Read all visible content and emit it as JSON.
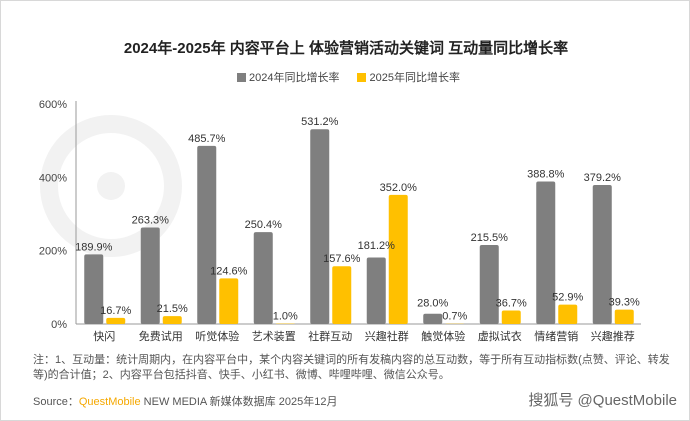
{
  "chart_data": {
    "type": "bar",
    "title": "2024年-2025年 内容平台上 体验营销活动关键词 互动量同比增长率",
    "categories": [
      "快闪",
      "免费试用",
      "听觉体验",
      "艺术装置",
      "社群互动",
      "兴趣社群",
      "触觉体验",
      "虚拟试衣",
      "情绪营销",
      "兴趣推荐"
    ],
    "series": [
      {
        "name": "2024年同比增长率",
        "color": "#7f7f7f",
        "values": [
          189.9,
          263.3,
          485.7,
          250.4,
          531.2,
          181.2,
          28.0,
          215.5,
          388.8,
          379.2
        ]
      },
      {
        "name": "2025年同比增长率",
        "color": "#ffc000",
        "values": [
          16.7,
          21.5,
          124.6,
          1.0,
          157.6,
          352.0,
          0.7,
          36.7,
          52.9,
          39.3
        ]
      }
    ],
    "yticks": [
      "0%",
      "200%",
      "400%",
      "600%"
    ],
    "ylim": [
      0,
      600
    ],
    "xlabel": "",
    "ylabel": "",
    "legend": "top-center",
    "grid": false
  },
  "note": "注：1、互动量：统计周期内，在内容平台中，某个内容关键词的所有发稿内容的总互动数，等于所有互动指标数(点赞、评论、转发等)的合计值；2、内容平台包括抖音、快手、小红书、微博、哔哩哔哩、微信公众号。",
  "source": {
    "label": "Source：",
    "brand": "QuestMobile",
    "text": " NEW MEDIA 新媒体数据库 2025年12月"
  },
  "watermark": "搜狐号 @QuestMobile",
  "bg_watermark": "QUESTMOBILE"
}
